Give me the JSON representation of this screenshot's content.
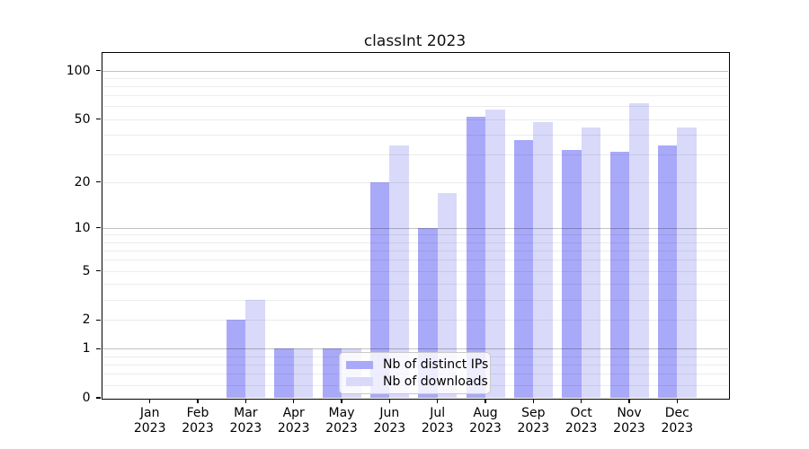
{
  "title": "classInt 2023",
  "chart_data": {
    "type": "bar",
    "title": "classInt 2023",
    "categories": [
      "Jan 2023",
      "Feb 2023",
      "Mar 2023",
      "Apr 2023",
      "May 2023",
      "Jun 2023",
      "Jul 2023",
      "Aug 2023",
      "Sep 2023",
      "Oct 2023",
      "Nov 2023",
      "Dec 2023"
    ],
    "series": [
      {
        "name": "Nb of distinct IPs",
        "color": "#a9a9f9",
        "values": [
          0,
          0,
          2,
          1,
          1,
          20,
          10,
          52,
          37,
          32,
          31,
          34
        ]
      },
      {
        "name": "Nb of downloads",
        "color": "#d9d9fa",
        "values": [
          0,
          0,
          3,
          1,
          1,
          34,
          17,
          57,
          48,
          44,
          63,
          44
        ]
      }
    ],
    "xlabel": "",
    "ylabel": "",
    "yscale": "log1p",
    "ylim": [
      0,
      128
    ],
    "ytick_labels": [
      "0",
      "1",
      "2",
      "5",
      "10",
      "20",
      "50",
      "100"
    ],
    "ytick_values": [
      0,
      1,
      2,
      5,
      10,
      20,
      50,
      100
    ],
    "grid_major": [
      1,
      10,
      100
    ],
    "grid_minor": [
      0.2,
      0.4,
      0.6,
      0.8,
      2,
      3,
      4,
      5,
      6,
      7,
      8,
      9,
      20,
      30,
      40,
      50,
      60,
      70,
      80,
      90
    ],
    "legend": {
      "position": "lower center, overlapping May-Aug bars"
    },
    "colors": {
      "bar_distinct_ips": "#a9a9f9",
      "bar_downloads": "#d9d9fa",
      "grid_major": "#c3c3c3",
      "grid_minor": "#ececec",
      "axis": "#000000",
      "legend_background": "rgba(255,255,255,0.8)"
    }
  }
}
